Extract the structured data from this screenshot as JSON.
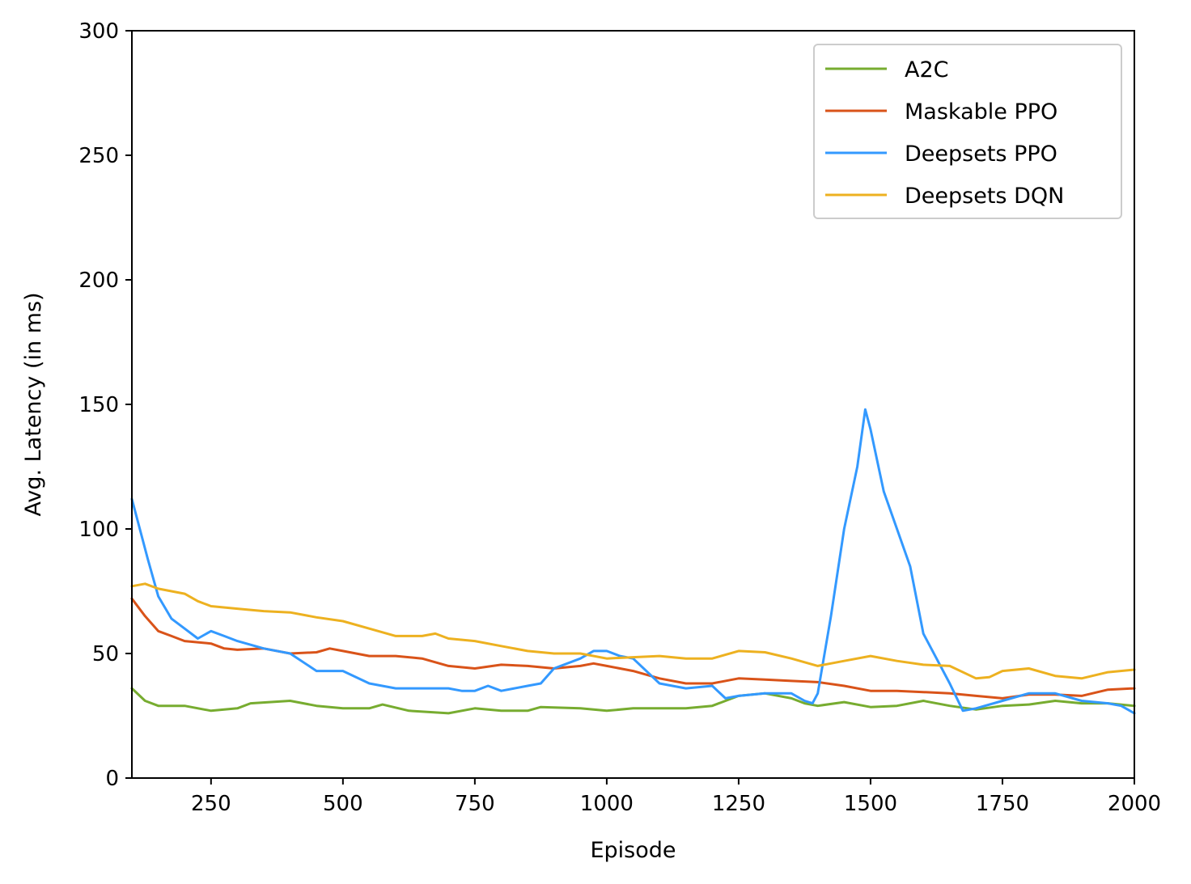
{
  "chart_data": {
    "type": "line",
    "xlabel": "Episode",
    "ylabel": "Avg. Latency (in ms)",
    "xlim": [
      100,
      2000
    ],
    "ylim": [
      0,
      300
    ],
    "xticks": [
      250,
      500,
      750,
      1000,
      1250,
      1500,
      1750,
      2000
    ],
    "yticks": [
      0,
      50,
      100,
      150,
      200,
      250,
      300
    ],
    "grid": false,
    "legend_position": "top-right",
    "series": [
      {
        "name": "A2C",
        "color": "#77ac30",
        "points": [
          [
            100,
            36
          ],
          [
            125,
            31
          ],
          [
            150,
            29
          ],
          [
            200,
            29
          ],
          [
            250,
            27
          ],
          [
            300,
            28
          ],
          [
            325,
            30
          ],
          [
            400,
            31
          ],
          [
            450,
            29
          ],
          [
            500,
            28
          ],
          [
            550,
            28
          ],
          [
            575,
            29.5
          ],
          [
            625,
            27
          ],
          [
            700,
            26
          ],
          [
            750,
            28
          ],
          [
            800,
            27
          ],
          [
            850,
            27
          ],
          [
            875,
            28.5
          ],
          [
            950,
            28
          ],
          [
            1000,
            27
          ],
          [
            1050,
            28
          ],
          [
            1100,
            28
          ],
          [
            1150,
            28
          ],
          [
            1200,
            29
          ],
          [
            1250,
            33
          ],
          [
            1300,
            34
          ],
          [
            1350,
            32
          ],
          [
            1375,
            30
          ],
          [
            1400,
            29
          ],
          [
            1450,
            30.5
          ],
          [
            1500,
            28.5
          ],
          [
            1550,
            29
          ],
          [
            1600,
            31
          ],
          [
            1650,
            29
          ],
          [
            1700,
            27.5
          ],
          [
            1750,
            29
          ],
          [
            1800,
            29.5
          ],
          [
            1850,
            31
          ],
          [
            1900,
            30
          ],
          [
            1950,
            30
          ],
          [
            2000,
            29
          ]
        ]
      },
      {
        "name": "Maskable PPO",
        "color": "#d95319",
        "points": [
          [
            100,
            72
          ],
          [
            125,
            65
          ],
          [
            150,
            59
          ],
          [
            175,
            57
          ],
          [
            200,
            55
          ],
          [
            250,
            54
          ],
          [
            275,
            52
          ],
          [
            300,
            51.5
          ],
          [
            350,
            52
          ],
          [
            400,
            50
          ],
          [
            450,
            50.5
          ],
          [
            475,
            52
          ],
          [
            500,
            51
          ],
          [
            550,
            49
          ],
          [
            600,
            49
          ],
          [
            650,
            48
          ],
          [
            700,
            45
          ],
          [
            750,
            44
          ],
          [
            800,
            45.5
          ],
          [
            850,
            45
          ],
          [
            900,
            44
          ],
          [
            950,
            45
          ],
          [
            975,
            46
          ],
          [
            1000,
            45
          ],
          [
            1050,
            43
          ],
          [
            1100,
            40
          ],
          [
            1150,
            38
          ],
          [
            1200,
            38
          ],
          [
            1250,
            40
          ],
          [
            1300,
            39.5
          ],
          [
            1350,
            39
          ],
          [
            1400,
            38.5
          ],
          [
            1450,
            37
          ],
          [
            1500,
            35
          ],
          [
            1550,
            35
          ],
          [
            1600,
            34.5
          ],
          [
            1650,
            34
          ],
          [
            1700,
            33
          ],
          [
            1750,
            32
          ],
          [
            1800,
            33.5
          ],
          [
            1850,
            33.5
          ],
          [
            1900,
            33
          ],
          [
            1950,
            35.5
          ],
          [
            2000,
            36
          ]
        ]
      },
      {
        "name": "Deepsets PPO",
        "color": "#3399ff",
        "points": [
          [
            100,
            112
          ],
          [
            115,
            100
          ],
          [
            130,
            88
          ],
          [
            150,
            73
          ],
          [
            175,
            64
          ],
          [
            200,
            60
          ],
          [
            225,
            56
          ],
          [
            250,
            59
          ],
          [
            275,
            57
          ],
          [
            300,
            55
          ],
          [
            350,
            52
          ],
          [
            400,
            50
          ],
          [
            450,
            43
          ],
          [
            500,
            43
          ],
          [
            550,
            38
          ],
          [
            600,
            36
          ],
          [
            650,
            36
          ],
          [
            700,
            36
          ],
          [
            725,
            35
          ],
          [
            750,
            35
          ],
          [
            775,
            37
          ],
          [
            800,
            35
          ],
          [
            850,
            37
          ],
          [
            875,
            38
          ],
          [
            900,
            44
          ],
          [
            950,
            48
          ],
          [
            975,
            51
          ],
          [
            1000,
            51
          ],
          [
            1025,
            49
          ],
          [
            1050,
            48
          ],
          [
            1100,
            38
          ],
          [
            1150,
            36
          ],
          [
            1200,
            37
          ],
          [
            1225,
            32
          ],
          [
            1250,
            33
          ],
          [
            1300,
            34
          ],
          [
            1350,
            34
          ],
          [
            1375,
            31
          ],
          [
            1390,
            30
          ],
          [
            1400,
            34
          ],
          [
            1425,
            65
          ],
          [
            1450,
            100
          ],
          [
            1475,
            125
          ],
          [
            1490,
            148
          ],
          [
            1500,
            140
          ],
          [
            1525,
            115
          ],
          [
            1550,
            100
          ],
          [
            1575,
            85
          ],
          [
            1600,
            58
          ],
          [
            1625,
            48
          ],
          [
            1650,
            38
          ],
          [
            1675,
            27
          ],
          [
            1700,
            28
          ],
          [
            1750,
            31
          ],
          [
            1800,
            34
          ],
          [
            1850,
            34
          ],
          [
            1900,
            31
          ],
          [
            1950,
            30
          ],
          [
            1975,
            29
          ],
          [
            2000,
            26
          ]
        ]
      },
      {
        "name": "Deepsets DQN",
        "color": "#edb120",
        "points": [
          [
            100,
            77
          ],
          [
            125,
            78
          ],
          [
            150,
            76
          ],
          [
            200,
            74
          ],
          [
            225,
            71
          ],
          [
            250,
            69
          ],
          [
            300,
            68
          ],
          [
            350,
            67
          ],
          [
            400,
            66.5
          ],
          [
            450,
            64.5
          ],
          [
            500,
            63
          ],
          [
            550,
            60
          ],
          [
            600,
            57
          ],
          [
            650,
            57
          ],
          [
            675,
            58
          ],
          [
            700,
            56
          ],
          [
            750,
            55
          ],
          [
            800,
            53
          ],
          [
            850,
            51
          ],
          [
            900,
            50
          ],
          [
            950,
            50
          ],
          [
            1000,
            48
          ],
          [
            1050,
            48.5
          ],
          [
            1100,
            49
          ],
          [
            1150,
            48
          ],
          [
            1200,
            48
          ],
          [
            1250,
            51
          ],
          [
            1300,
            50.5
          ],
          [
            1350,
            48
          ],
          [
            1400,
            45
          ],
          [
            1450,
            47
          ],
          [
            1500,
            49
          ],
          [
            1550,
            47
          ],
          [
            1600,
            45.5
          ],
          [
            1650,
            45
          ],
          [
            1700,
            40
          ],
          [
            1725,
            40.5
          ],
          [
            1750,
            43
          ],
          [
            1800,
            44
          ],
          [
            1850,
            41
          ],
          [
            1900,
            40
          ],
          [
            1950,
            42.5
          ],
          [
            2000,
            43.5
          ]
        ]
      }
    ]
  }
}
